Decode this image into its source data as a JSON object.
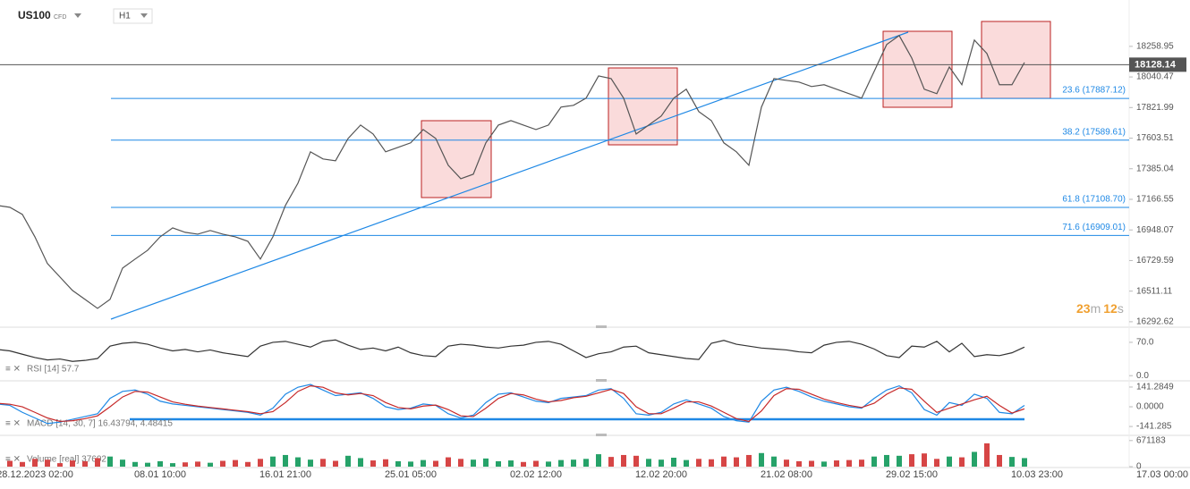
{
  "toolbar": {
    "symbol": "US100",
    "instrument": "CFD",
    "interval": "H1"
  },
  "countdown": {
    "minutes": "23",
    "minutes_unit": "m",
    "seconds": "12",
    "seconds_unit": "s"
  },
  "chart_data": [
    {
      "type": "line",
      "categories": [
        null,
        null,
        null,
        "28.12.2023 02:00",
        null,
        null,
        null,
        null,
        null,
        null,
        null,
        null,
        null,
        "08.01 10:00",
        null,
        null,
        null,
        null,
        null,
        null,
        null,
        null,
        null,
        "16.01 21:00",
        null,
        null,
        null,
        null,
        null,
        null,
        null,
        null,
        null,
        "25.01 05:00",
        null,
        null,
        null,
        null,
        null,
        null,
        null,
        null,
        null,
        "02.02 12:00",
        null,
        null,
        null,
        null,
        null,
        null,
        null,
        null,
        null,
        "12.02 20:00",
        null,
        null,
        null,
        null,
        null,
        null,
        null,
        null,
        null,
        "21.02 08:00",
        null,
        null,
        null,
        null,
        null,
        null,
        null,
        null,
        null,
        "29.02 15:00",
        null,
        null,
        null,
        null,
        null,
        null,
        null,
        null,
        null,
        "10.03 23:00",
        null,
        null,
        null,
        null,
        null,
        null,
        null,
        null,
        null,
        "17.03 00:00"
      ],
      "series": [
        {
          "color": "#555555",
          "values": [
            17123,
            17110,
            17059,
            16899,
            16708,
            16612,
            16516,
            16452,
            16388,
            16452,
            16676,
            16740,
            16803,
            16899,
            16963,
            16931,
            16918,
            16944,
            16918,
            16899,
            16867,
            16740,
            16899,
            17123,
            17282,
            17506,
            17455,
            17442,
            17601,
            17697,
            17633,
            17506,
            17538,
            17570,
            17665,
            17601,
            17410,
            17314,
            17346,
            17570,
            17697,
            17729,
            17697,
            17665,
            17697,
            17825,
            17838,
            17889,
            18048,
            18029,
            17889,
            17633,
            17697,
            17761,
            17889,
            17953,
            17793,
            17729,
            17570,
            17506,
            17410,
            17825,
            18029,
            18016,
            18004,
            17972,
            17985,
            17953,
            17921,
            17889,
            18080,
            18272,
            18336,
            18176,
            17953,
            17921,
            18112,
            17985,
            18304,
            18208,
            17985,
            17985,
            18144,
            null,
            null,
            null,
            null,
            null,
            null,
            null,
            null,
            null,
            null,
            null
          ]
        }
      ],
      "ylim": [
        16260,
        18590
      ],
      "yticks": [
        16292.62,
        16511.11,
        16729.59,
        16948.07,
        17166.55,
        17385.04,
        17603.51,
        17821.99,
        18040.47,
        18258.95
      ],
      "current_price": {
        "value": 18128.14,
        "color": "#555555"
      },
      "fib_color": "#1e88e5",
      "fib_levels": [
        {
          "label": "23.6 (17887.12)",
          "value": 17887.12
        },
        {
          "label": "38.2 (17589.61)",
          "value": 17589.61
        },
        {
          "label": "61.8 (17108.70)",
          "value": 17108.7
        },
        {
          "label": "71.6 (16909.01)",
          "value": 16909.01
        }
      ]
    },
    {
      "type": "line",
      "title": "RSI [14] 57.7",
      "series": [
        {
          "color": "#333333",
          "values": [
            55,
            52,
            45,
            38,
            33,
            35,
            30,
            32,
            36,
            62,
            68,
            70,
            66,
            58,
            52,
            55,
            50,
            54,
            48,
            44,
            40,
            62,
            70,
            72,
            66,
            60,
            72,
            75,
            64,
            55,
            58,
            52,
            60,
            48,
            42,
            40,
            62,
            66,
            64,
            60,
            58,
            62,
            64,
            70,
            72,
            66,
            52,
            38,
            46,
            50,
            60,
            62,
            48,
            44,
            40,
            36,
            34,
            68,
            74,
            66,
            62,
            58,
            56,
            54,
            50,
            48,
            64,
            70,
            72,
            66,
            56,
            42,
            38,
            62,
            60,
            72,
            50,
            68,
            40,
            44,
            42,
            48,
            60,
            null,
            null,
            null,
            null,
            null,
            null,
            null,
            null,
            null,
            null,
            null
          ]
        }
      ],
      "ylim": [
        -9,
        98
      ],
      "yticks": [
        {
          "value": 70,
          "label": "70.0"
        },
        {
          "value": 0,
          "label": "0.0"
        }
      ]
    },
    {
      "type": "line",
      "title": "MACD [14, 30, 7] 16.43794, 4.48415",
      "series": [
        {
          "color": "#1e88e5",
          "values": [
            20,
            10,
            -40,
            -80,
            -120,
            -110,
            -90,
            -70,
            -50,
            60,
            110,
            120,
            90,
            40,
            20,
            10,
            0,
            -10,
            -20,
            -30,
            -40,
            -60,
            -10,
            90,
            140,
            160,
            120,
            80,
            90,
            100,
            60,
            0,
            -20,
            -10,
            20,
            10,
            -50,
            -80,
            -60,
            30,
            90,
            100,
            70,
            40,
            30,
            60,
            70,
            80,
            120,
            130,
            60,
            -50,
            -60,
            -40,
            20,
            50,
            20,
            -10,
            -70,
            -100,
            -110,
            40,
            120,
            140,
            110,
            70,
            40,
            20,
            0,
            -10,
            60,
            120,
            150,
            100,
            -20,
            -60,
            30,
            10,
            90,
            60,
            -40,
            -50,
            10,
            null,
            null,
            null,
            null,
            null,
            null,
            null,
            null,
            null,
            null,
            null
          ]
        },
        {
          "color": "#c62828",
          "values": [
            25,
            18,
            0,
            -40,
            -80,
            -105,
            -100,
            -85,
            -65,
            0,
            70,
            110,
            105,
            70,
            35,
            18,
            5,
            -5,
            -15,
            -25,
            -35,
            -50,
            -35,
            30,
            110,
            150,
            140,
            100,
            85,
            95,
            80,
            30,
            -5,
            -15,
            5,
            12,
            -20,
            -65,
            -70,
            -10,
            60,
            95,
            85,
            55,
            35,
            45,
            65,
            75,
            100,
            125,
            95,
            0,
            -50,
            -50,
            -10,
            35,
            35,
            5,
            -40,
            -85,
            -105,
            -30,
            80,
            130,
            125,
            90,
            55,
            30,
            10,
            -5,
            25,
            90,
            135,
            125,
            40,
            -40,
            -10,
            20,
            50,
            75,
            10,
            -45,
            -15,
            null,
            null,
            null,
            null,
            null,
            null,
            null,
            null,
            null,
            null,
            null
          ]
        }
      ],
      "ylim": [
        -192,
        173
      ],
      "yticks": [
        {
          "value": 141.2849,
          "label": "141.2849"
        },
        {
          "value": 0,
          "label": "0.0000"
        },
        {
          "value": -141.285,
          "label": "-141.285"
        }
      ]
    },
    {
      "type": "bar",
      "title": "Volume [real] 37602",
      "up_color": "#26a269",
      "down_color": "#d64545",
      "values": [
        80000,
        150000,
        120000,
        200000,
        180000,
        90000,
        160000,
        140000,
        220000,
        260000,
        180000,
        120000,
        100000,
        140000,
        90000,
        110000,
        130000,
        100000,
        150000,
        170000,
        120000,
        200000,
        260000,
        300000,
        240000,
        180000,
        200000,
        150000,
        280000,
        220000,
        160000,
        190000,
        140000,
        130000,
        170000,
        150000,
        240000,
        200000,
        180000,
        210000,
        140000,
        160000,
        120000,
        150000,
        130000,
        170000,
        180000,
        200000,
        320000,
        250000,
        300000,
        280000,
        200000,
        180000,
        230000,
        170000,
        200000,
        190000,
        260000,
        240000,
        300000,
        350000,
        260000,
        180000,
        140000,
        150000,
        130000,
        160000,
        170000,
        180000,
        260000,
        300000,
        280000,
        320000,
        340000,
        200000,
        260000,
        240000,
        380000,
        600000,
        300000,
        250000,
        220000,
        null,
        null,
        null,
        null,
        null,
        null,
        null,
        null,
        null,
        null,
        null
      ],
      "ylim": [
        0,
        805000
      ],
      "yticks": [
        671183,
        0
      ]
    }
  ]
}
